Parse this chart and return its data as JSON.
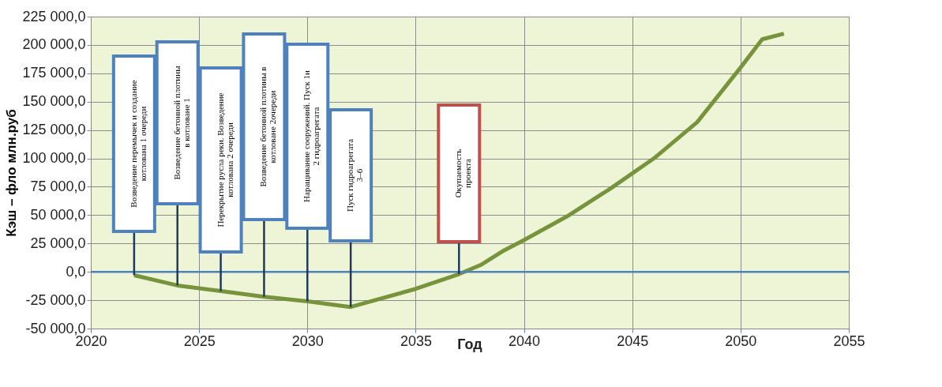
{
  "chart_data": {
    "type": "line",
    "xlabel": "Год",
    "ylabel": "Кэш – фло млн.руб",
    "x": [
      2022,
      2024,
      2026,
      2028,
      2030,
      2032,
      2035,
      2037,
      2038,
      2039,
      2040,
      2042,
      2044,
      2046,
      2048,
      2050,
      2051,
      2052
    ],
    "series": [
      {
        "color": "#77933c",
        "values": [
          -3000,
          -12000,
          -17000,
          -22000,
          -26000,
          -31000,
          -15000,
          -2000,
          6000,
          18000,
          28000,
          49000,
          73500,
          100000,
          132000,
          180000,
          205000,
          210000
        ]
      }
    ],
    "xlim": [
      2020,
      2055
    ],
    "xticks": [
      2020,
      2025,
      2030,
      2035,
      2040,
      2045,
      2050,
      2055
    ],
    "ylim": [
      -50000,
      225000
    ],
    "yticks": [
      {
        "value": -50000,
        "label": "-50 000,0"
      },
      {
        "value": -25000,
        "label": "-25 000,0"
      },
      {
        "value": 0,
        "label": "0,0"
      },
      {
        "value": 25000,
        "label": "25 000,0"
      },
      {
        "value": 50000,
        "label": "50 000,0"
      },
      {
        "value": 75000,
        "label": "75 000,0"
      },
      {
        "value": 100000,
        "label": "100 000,0"
      },
      {
        "value": 125000,
        "label": "125 000,0"
      },
      {
        "value": 150000,
        "label": "150 000,0"
      },
      {
        "value": 175000,
        "label": "175 000,0"
      },
      {
        "value": 200000,
        "label": "200 000,0"
      },
      {
        "value": 225000,
        "label": "225 000,0"
      }
    ],
    "grid": true,
    "marker": "none",
    "line_style": "solid",
    "ref_lines": [
      {
        "axis": "y",
        "value": 0,
        "color": "#4f81bd"
      }
    ],
    "annotations": [
      {
        "text": "Возведение перемычек и создание котлована 1 очереди",
        "x": 2022,
        "y": -3000
      },
      {
        "text": "Возведение бетонной плотины в котловане 1",
        "x": 2024,
        "y": -12000
      },
      {
        "text": "Перекрытие русла реки. Возведение котлована 2 очереди",
        "x": 2026,
        "y": -17000
      },
      {
        "text": "Возведение бетонной плотины в котловане 2очереди",
        "x": 2028,
        "y": -22000
      },
      {
        "text": "Наращивание сооружений. Пуск 1и 2  гидроагрегата",
        "x": 2030,
        "y": -26000
      },
      {
        "text": "Пуск гидроагрегата 3–6",
        "x": 2032,
        "y": -31000
      },
      {
        "text": "Окупаемость проекта",
        "x": 2037,
        "y": -2000
      }
    ]
  }
}
